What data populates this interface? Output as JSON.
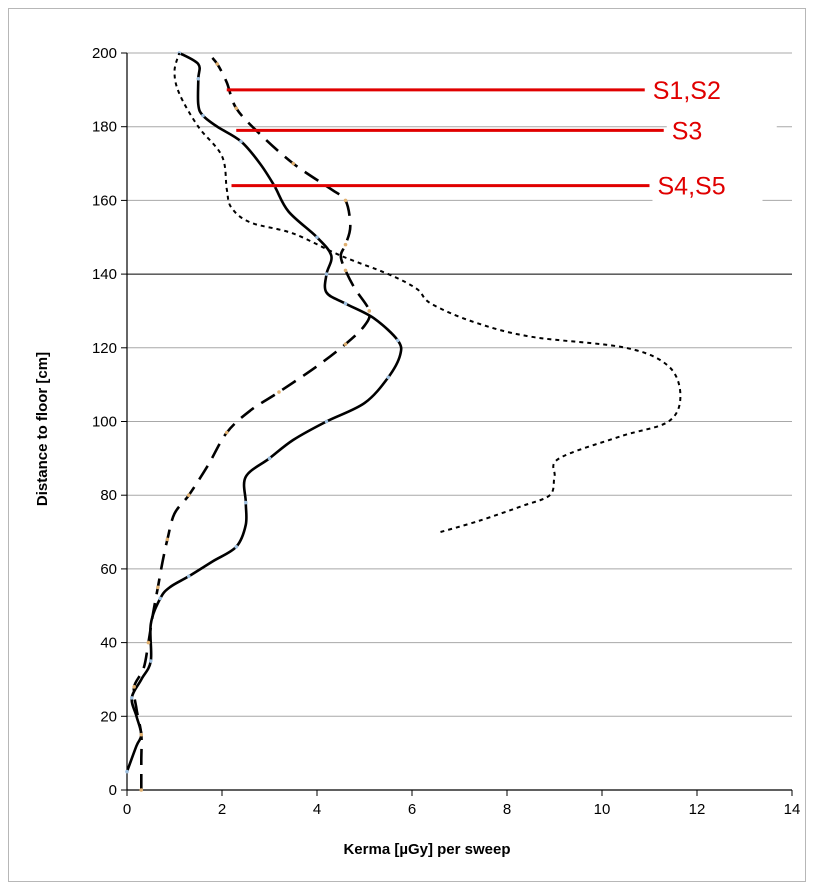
{
  "chart_data": {
    "type": "line",
    "title": "",
    "xlabel": "Kerma [µGy] per sweep",
    "ylabel": "Distance to floor [cm]",
    "xlim": [
      0,
      14
    ],
    "ylim": [
      0,
      200
    ],
    "xticks": [
      0,
      2,
      4,
      6,
      8,
      10,
      12,
      14
    ],
    "yticks": [
      0,
      20,
      40,
      60,
      80,
      100,
      120,
      140,
      160,
      180,
      200
    ],
    "grid": "horizontal",
    "series": [
      {
        "style": "solid",
        "color": "#000000",
        "points": [
          [
            0,
            5
          ],
          [
            0.2,
            12
          ],
          [
            0.3,
            15
          ],
          [
            0.2,
            20
          ],
          [
            0.1,
            25
          ],
          [
            0.3,
            30
          ],
          [
            0.5,
            35
          ],
          [
            0.5,
            45
          ],
          [
            0.7,
            52
          ],
          [
            0.9,
            55
          ],
          [
            1.3,
            58
          ],
          [
            1.8,
            62
          ],
          [
            2.3,
            66
          ],
          [
            2.5,
            72
          ],
          [
            2.5,
            78
          ],
          [
            2.5,
            85
          ],
          [
            3,
            90
          ],
          [
            3.5,
            95
          ],
          [
            4.2,
            100
          ],
          [
            5,
            105
          ],
          [
            5.5,
            112
          ],
          [
            5.75,
            118
          ],
          [
            5.7,
            122
          ],
          [
            5.2,
            128
          ],
          [
            4.6,
            132
          ],
          [
            4.2,
            135
          ],
          [
            4.2,
            140
          ],
          [
            4.3,
            145
          ],
          [
            4.0,
            150
          ],
          [
            3.4,
            157
          ],
          [
            3.1,
            164
          ],
          [
            2.8,
            170
          ],
          [
            2.4,
            176
          ],
          [
            1.9,
            180
          ],
          [
            1.6,
            183
          ],
          [
            1.5,
            186
          ],
          [
            1.5,
            193
          ],
          [
            1.5,
            197
          ],
          [
            1.1,
            200
          ]
        ]
      },
      {
        "style": "dashed",
        "color": "#000000",
        "points": [
          [
            0.3,
            0
          ],
          [
            0.3,
            8
          ],
          [
            0.3,
            15
          ],
          [
            0.2,
            22
          ],
          [
            0.15,
            28
          ],
          [
            0.35,
            33
          ],
          [
            0.45,
            40
          ],
          [
            0.55,
            48
          ],
          [
            0.65,
            55
          ],
          [
            0.75,
            62
          ],
          [
            0.85,
            68
          ],
          [
            1.0,
            75
          ],
          [
            1.3,
            80
          ],
          [
            1.7,
            88
          ],
          [
            2.1,
            97
          ],
          [
            2.6,
            103
          ],
          [
            3.2,
            108
          ],
          [
            4.0,
            115
          ],
          [
            4.6,
            121
          ],
          [
            5.0,
            126
          ],
          [
            5.1,
            130
          ],
          [
            4.8,
            136
          ],
          [
            4.6,
            141
          ],
          [
            4.5,
            145
          ],
          [
            4.6,
            148
          ],
          [
            4.7,
            153
          ],
          [
            4.6,
            160
          ],
          [
            4.3,
            163
          ],
          [
            3.5,
            170
          ],
          [
            2.8,
            178
          ],
          [
            2.3,
            185
          ],
          [
            2.1,
            192
          ],
          [
            1.9,
            197
          ],
          [
            1.7,
            200
          ]
        ]
      },
      {
        "style": "dotted",
        "color": "#000000",
        "points": [
          [
            6.6,
            70
          ],
          [
            7.4,
            73
          ],
          [
            8.3,
            77
          ],
          [
            8.9,
            80
          ],
          [
            9.0,
            85
          ],
          [
            9.1,
            90
          ],
          [
            10.4,
            96
          ],
          [
            11.4,
            100
          ],
          [
            11.65,
            107
          ],
          [
            11.4,
            115
          ],
          [
            10.5,
            120
          ],
          [
            8.5,
            123
          ],
          [
            7.3,
            127
          ],
          [
            6.4,
            132
          ],
          [
            6.1,
            136
          ],
          [
            5.5,
            140
          ],
          [
            4.5,
            145
          ],
          [
            3.5,
            151
          ],
          [
            2.6,
            154
          ],
          [
            2.2,
            158
          ],
          [
            2.1,
            163
          ],
          [
            2.0,
            172
          ],
          [
            1.5,
            180
          ],
          [
            1.1,
            189
          ],
          [
            1.0,
            195
          ],
          [
            1.1,
            200
          ]
        ]
      }
    ],
    "annotations": [
      {
        "text": "S1,S2",
        "line_from": [
          2.1,
          190
        ],
        "line_to_x": 10.9,
        "color": "#e00000"
      },
      {
        "text": "S3",
        "line_from": [
          2.3,
          179
        ],
        "line_to_x": 11.3,
        "color": "#e00000"
      },
      {
        "text": "S4,S5",
        "line_from": [
          2.2,
          164
        ],
        "line_to_x": 11.0,
        "color": "#e00000"
      }
    ]
  }
}
